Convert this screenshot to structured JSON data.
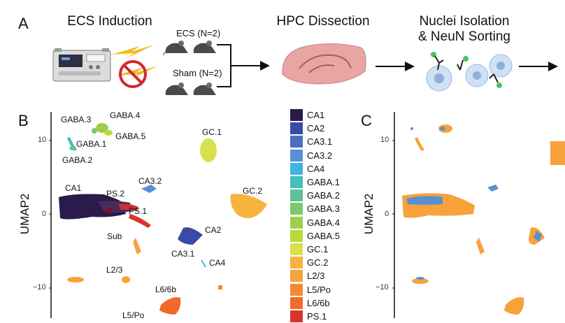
{
  "panel_letters": {
    "a": "A",
    "b": "B",
    "c": "C"
  },
  "steps": {
    "ecs_induction": "ECS Induction",
    "hpc_dissection": "HPC Dissection",
    "nuclei_line1": "Nuclei Isolation",
    "nuclei_line2": "& NeuN Sorting"
  },
  "groups": {
    "ecs": "ECS (N=2)",
    "sham": "Sham (N=2)"
  },
  "umap": {
    "ylabel": "UMAP2",
    "ticks": [
      "10",
      "0",
      "−10"
    ],
    "cluster_labels": {
      "gaba3": "GABA.3",
      "gaba4": "GABA.4",
      "gaba5": "GABA.5",
      "gaba1": "GABA.1",
      "gaba2": "GABA.2",
      "gc1": "GC.1",
      "gc2": "GC.2",
      "ca32": "CA3.2",
      "ca1": "CA1",
      "ps2": "PS.2",
      "ps1": "PS.1",
      "sub": "Sub",
      "ca2": "CA2",
      "ca31": "CA3.1",
      "ca4": "CA4",
      "l23": "L2/3",
      "l66b": "L6/6b",
      "l5po": "L5/Po"
    }
  },
  "legend": [
    {
      "label": "CA1",
      "color": "#2b1b4a"
    },
    {
      "label": "CA2",
      "color": "#3a4ba6"
    },
    {
      "label": "CA3.1",
      "color": "#4b6fbf"
    },
    {
      "label": "CA3.2",
      "color": "#5a8fd4"
    },
    {
      "label": "CA4",
      "color": "#3fb4e0"
    },
    {
      "label": "GABA.1",
      "color": "#45bdb8"
    },
    {
      "label": "GABA.2",
      "color": "#5ec295"
    },
    {
      "label": "GABA.3",
      "color": "#7bc96b"
    },
    {
      "label": "GABA.4",
      "color": "#9fcf4a"
    },
    {
      "label": "GABA.5",
      "color": "#b9d93f"
    },
    {
      "label": "GC.1",
      "color": "#d8e04c"
    },
    {
      "label": "GC.2",
      "color": "#f6b43f"
    },
    {
      "label": "L2/3",
      "color": "#f7a23a"
    },
    {
      "label": "L5/Po",
      "color": "#f38a30"
    },
    {
      "label": "L6/6b",
      "color": "#ef6a2b"
    },
    {
      "label": "PS.1",
      "color": "#d9352c"
    }
  ],
  "condition_colors": {
    "ecs": "#f7a23a",
    "sham": "#5a8fd4"
  }
}
